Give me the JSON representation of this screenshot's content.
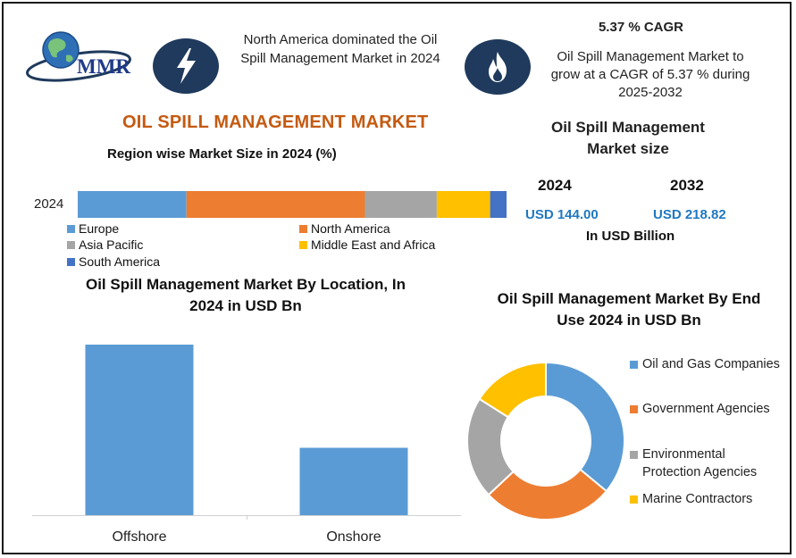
{
  "logo": {
    "text": "MMR"
  },
  "header": {
    "dominance_text": "North America dominated the Oil Spill Management Market in 2024",
    "cagr_title": "5.37 % CAGR",
    "cagr_text": "Oil Spill Management Market to grow at a CAGR of 5.37 % during 2025-2032"
  },
  "icons": {
    "left": "lightning-bolt-icon",
    "right": "flame-icon"
  },
  "main_title": "OIL SPILL MANAGEMENT MARKET",
  "market_size": {
    "title": "Oil Spill Management Market size",
    "year_a": "2024",
    "year_b": "2032",
    "value_a": "USD 144.00",
    "value_b": "USD 218.82",
    "unit": "In USD Billion"
  },
  "colors": {
    "blue": "#5b9bd5",
    "orange": "#ed7d31",
    "gray": "#a5a5a5",
    "yellow": "#ffc000",
    "darkblue": "#4472c4",
    "navy": "#1f3a5c",
    "title_orange": "#c55a11"
  },
  "chart_data": [
    {
      "type": "bar",
      "orientation": "horizontal-stacked",
      "title": "Region wise Market Size in 2024 (%)",
      "categories": [
        "2024"
      ],
      "series": [
        {
          "name": "Europe",
          "values": [
            26.5
          ]
        },
        {
          "name": "North America",
          "values": [
            43.5
          ]
        },
        {
          "name": "Asia Pacific",
          "values": [
            17.5
          ]
        },
        {
          "name": "Middle East and Africa",
          "values": [
            13.0
          ]
        },
        {
          "name": "South America",
          "values": [
            4.0
          ]
        }
      ],
      "xlim": [
        0,
        104.5
      ],
      "legend": "bottom"
    },
    {
      "type": "bar",
      "title": "Oil Spill Management Market By  Location, In 2024 in USD Bn",
      "categories": [
        "Offshore",
        "Onshore"
      ],
      "values": [
        100,
        39.5
      ],
      "ylim": [
        0,
        100
      ],
      "xlabel": "",
      "ylabel": ""
    },
    {
      "type": "pie",
      "variant": "donut",
      "title": "Oil Spill Management Market By End Use 2024 in USD Bn",
      "categories": [
        "Oil and Gas Companies",
        "Government Agencies",
        "Environmental Protection Agencies",
        "Marine Contractors"
      ],
      "values": [
        36,
        27,
        21,
        16
      ],
      "legend": "right"
    }
  ]
}
